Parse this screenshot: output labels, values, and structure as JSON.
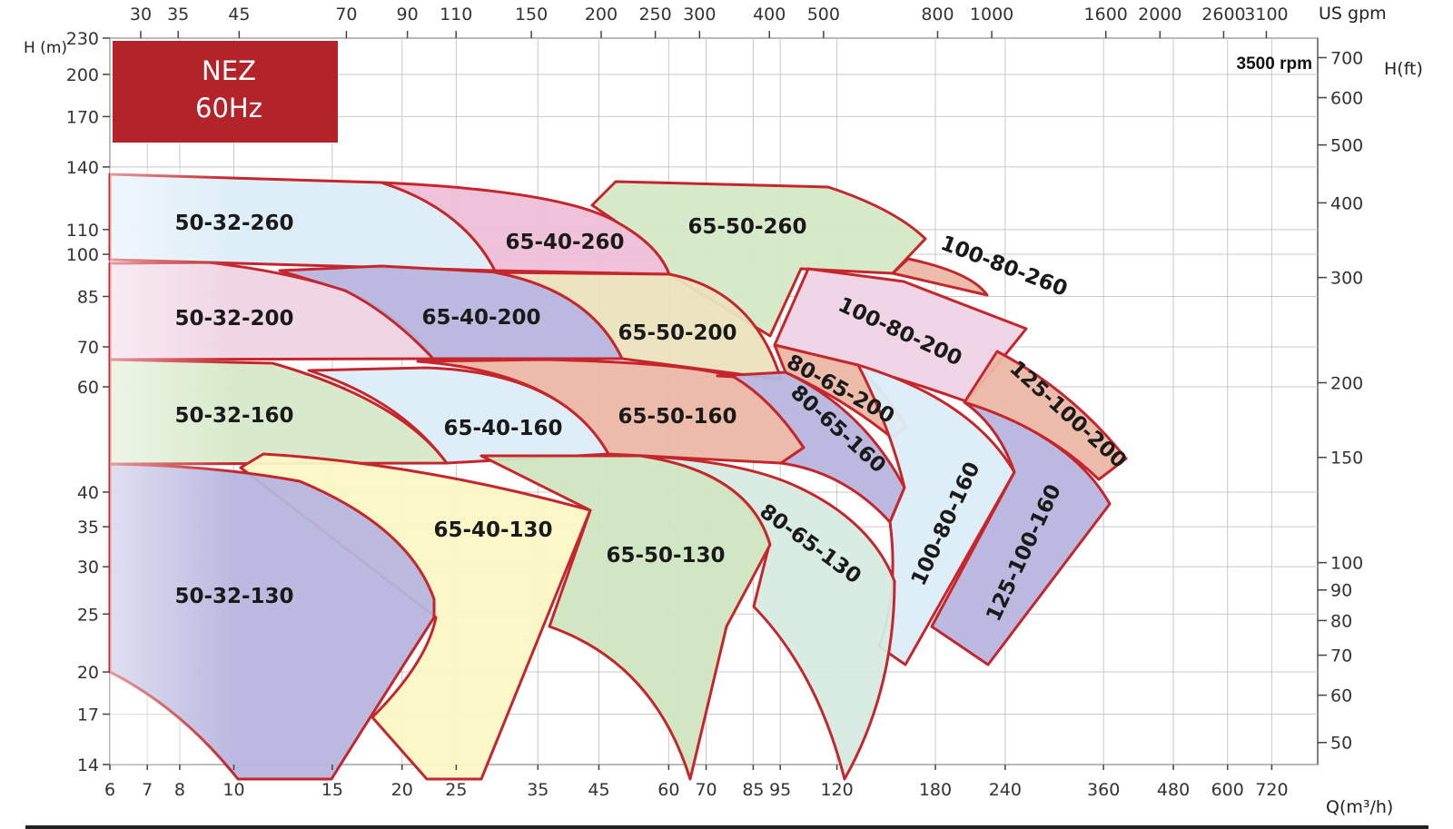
{
  "brand": {
    "line1": "NEZ",
    "line2": "60Hz",
    "color": "#b3242a"
  },
  "rpm_label": "3500 rpm",
  "chart_data": {
    "type": "area",
    "title": "",
    "x_unit_bottom": "Q(m³/h)",
    "x_unit_top": "US gpm",
    "y_unit_left": "H (m)",
    "y_unit_right": "H(ft)",
    "xscale": "log",
    "yscale": "log",
    "xlim": [
      6,
      870
    ],
    "ylim": [
      14,
      230
    ],
    "grid": true,
    "x_ticks_bottom": [
      "6",
      "7",
      "8",
      "10",
      "15",
      "20",
      "25",
      "35",
      "45",
      "60",
      "70",
      "85",
      "95",
      "120",
      "180",
      "240",
      "360",
      "480",
      "600",
      "720"
    ],
    "x_ticks_top": [
      "30",
      "35",
      "45",
      "70",
      "90",
      "110",
      "150",
      "200",
      "250",
      "300",
      "400",
      "500",
      "800",
      "1000",
      "1600",
      "2000",
      "2600",
      "3100"
    ],
    "y_ticks_left": [
      "14",
      "17",
      "20",
      "25",
      "30",
      "35",
      "40",
      "60",
      "70",
      "85",
      "100",
      "110",
      "140",
      "170",
      "200",
      "230"
    ],
    "y_ticks_right": [
      "50",
      "60",
      "70",
      "80",
      "90",
      "100",
      "150",
      "200",
      "300",
      "400",
      "500",
      "600",
      "700"
    ],
    "series": [
      {
        "name": "50-32-260",
        "color": "#dcedf8"
      },
      {
        "name": "65-40-260",
        "color": "#eebfd8"
      },
      {
        "name": "65-50-260",
        "color": "#d4e9c6"
      },
      {
        "name": "100-80-260",
        "color": "#ebb7a5"
      },
      {
        "name": "50-32-200",
        "color": "#efd3e4"
      },
      {
        "name": "65-40-200",
        "color": "#b7b5de"
      },
      {
        "name": "65-50-200",
        "color": "#ebe2be"
      },
      {
        "name": "100-80-200",
        "color": "#efd3e6"
      },
      {
        "name": "80-65-200",
        "color": "#ebb7a5"
      },
      {
        "name": "50-32-160",
        "color": "#d6e9c8"
      },
      {
        "name": "65-40-160",
        "color": "#dcedf8"
      },
      {
        "name": "65-50-160",
        "color": "#ebb7a5"
      },
      {
        "name": "80-65-160",
        "color": "#b7b5de"
      },
      {
        "name": "125-100-200",
        "color": "#ebb7a5"
      },
      {
        "name": "100-80-160",
        "color": "#dcedf8"
      },
      {
        "name": "125-100-160",
        "color": "#b7b5de"
      },
      {
        "name": "80-65-130",
        "color": "#d6ebe2"
      },
      {
        "name": "65-50-130",
        "color": "#cfe6c0"
      },
      {
        "name": "65-40-130",
        "color": "#fbf7c6"
      },
      {
        "name": "50-32-130",
        "color": "#b7b5de"
      }
    ]
  }
}
